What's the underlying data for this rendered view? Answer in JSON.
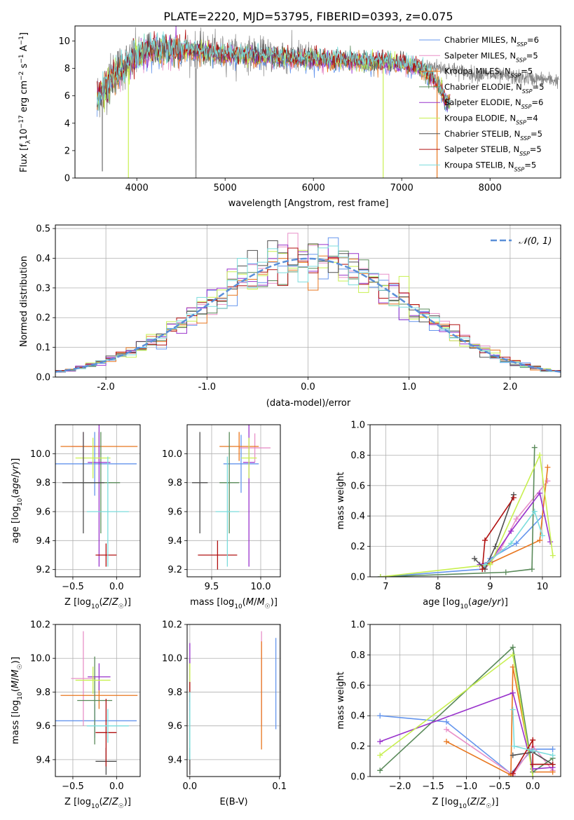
{
  "figure_title": "PLATE=2220, MJD=53795, FIBERID=0393, z=0.075",
  "colors": {
    "Chabrier MILES": "#6495ed",
    "Salpeter MILES": "#e890c8",
    "Kroupa MILES": "#e8761e",
    "Chabrier ELODIE": "#5a8a5a",
    "Salpeter ELODIE": "#9932cc",
    "Kroupa ELODIE": "#c8f050",
    "Chabrier STELIB": "#505050",
    "Salpeter STELIB": "#b01010",
    "Kroupa STELIB": "#7adcdc",
    "grid": "#b0b0b0",
    "gaussian": "#5b8fd8"
  },
  "chart_data": [
    {
      "type": "line",
      "title": "PLATE=2220, MJD=53795, FIBERID=0393, z=0.075",
      "xlabel": "wavelength [Angstrom, rest frame]",
      "ylabel": "Flux [fλ10⁻¹⁷ erg cm⁻² s⁻¹ A⁻¹]",
      "xlim": [
        3300,
        8800
      ],
      "ylim": [
        0,
        11.1
      ],
      "xticks": [
        4000,
        5000,
        6000,
        7000,
        8000
      ],
      "yticks": [
        0,
        2,
        4,
        6,
        8,
        10
      ],
      "grid": false,
      "legend_position": "top-right",
      "legend": [
        "Chabrier MILES, NSSP=6",
        "Salpeter MILES, NSSP=5",
        "Kroupa MILES, NSSP=5",
        "Chabrier ELODIE, NSSP=5",
        "Salpeter ELODIE, NSSP=6",
        "Kroupa ELODIE, NSSP=4",
        "Chabrier STELIB, NSSP=5",
        "Salpeter STELIB, NSSP=5",
        "Kroupa STELIB, NSSP=5"
      ],
      "data_continuum": {
        "x": [
          3550,
          3650,
          3750,
          3850,
          3950,
          4050,
          4200,
          4400,
          4600,
          4800,
          5000,
          5200,
          5400,
          5600,
          5800,
          6000,
          6200,
          6400,
          6600,
          6800,
          7000,
          7200,
          7400,
          7600,
          7800,
          8000,
          8200,
          8400,
          8600,
          8800
        ],
        "y": [
          6.0,
          6.8,
          7.8,
          8.2,
          8.6,
          9.2,
          9.4,
          9.5,
          9.4,
          9.3,
          9.1,
          9.1,
          9.0,
          8.9,
          8.8,
          8.8,
          8.6,
          8.6,
          8.5,
          8.5,
          8.3,
          8.2,
          8.1,
          7.9,
          7.6,
          7.5,
          7.4,
          7.3,
          7.2,
          7.1
        ]
      },
      "model_continuum": {
        "x": [
          3550,
          3650,
          3750,
          3850,
          3950,
          4050,
          4200,
          4400,
          4600,
          4800,
          5000,
          5200,
          5400,
          5600,
          5800,
          6000,
          6200,
          6400,
          6600,
          6800,
          7000,
          7200,
          7400,
          7500
        ],
        "y": [
          5.8,
          6.5,
          7.4,
          7.9,
          8.6,
          9.1,
          9.3,
          9.4,
          9.3,
          9.2,
          9.0,
          9.0,
          8.9,
          8.8,
          8.7,
          8.7,
          8.6,
          8.6,
          8.5,
          8.5,
          8.3,
          8.1,
          7.0,
          5.5
        ]
      }
    },
    {
      "type": "line",
      "xlabel": "(data-model)/error",
      "ylabel": "Normed distribution",
      "xlim": [
        -2.5,
        2.5
      ],
      "ylim": [
        0,
        0.512
      ],
      "xticks": [
        -2,
        -1,
        0,
        1,
        2
      ],
      "yticks": [
        0.0,
        0.1,
        0.2,
        0.3,
        0.4,
        0.5
      ],
      "grid": true,
      "legend_position": "top-right",
      "legend": [
        "𝒩(0, 1)"
      ],
      "bin_width": 0.1,
      "gaussian": {
        "mu": 0,
        "sigma": 1
      }
    },
    {
      "type": "scatter",
      "xlabel": "Z [log10(Z/Z☉)]",
      "ylabel": "age  [log10(age/yr)]",
      "xlim": [
        -0.7,
        0.27
      ],
      "ylim": [
        9.15,
        10.2
      ],
      "xticks": [
        -0.5,
        0.0
      ],
      "yticks": [
        9.2,
        9.4,
        9.6,
        9.8,
        10.0
      ],
      "grid": true,
      "series": [
        {
          "name": "Chabrier MILES",
          "x": -0.25,
          "y": 9.93,
          "xerr": 0.48,
          "yerr": 0.22
        },
        {
          "name": "Salpeter MILES",
          "x": -0.38,
          "y": 10.05,
          "xerr": 0.14,
          "yerr": 0.1
        },
        {
          "name": "Kroupa MILES",
          "x": -0.2,
          "y": 10.05,
          "xerr": 0.44,
          "yerr": 0.1
        },
        {
          "name": "Chabrier ELODIE",
          "x": -0.18,
          "y": 9.8,
          "xerr": 0.22,
          "yerr": 0.35
        },
        {
          "name": "Salpeter ELODIE",
          "x": -0.2,
          "y": 9.94,
          "xerr": 0.13,
          "yerr": 0.72
        },
        {
          "name": "Kroupa ELODIE",
          "x": -0.27,
          "y": 9.97,
          "xerr": 0.2,
          "yerr": 0.14
        },
        {
          "name": "Chabrier STELIB",
          "x": -0.38,
          "y": 9.8,
          "xerr": 0.24,
          "yerr": 0.35
        },
        {
          "name": "Salpeter STELIB",
          "x": -0.12,
          "y": 9.3,
          "xerr": 0.12,
          "yerr": 0.08
        },
        {
          "name": "Kroupa STELIB",
          "x": -0.1,
          "y": 9.6,
          "xerr": 0.24,
          "yerr": 0.38
        }
      ]
    },
    {
      "type": "scatter",
      "xlabel": "mass [log10(M/M☉)]",
      "ylabel": "",
      "xlim": [
        9.25,
        10.2
      ],
      "ylim": [
        9.15,
        10.2
      ],
      "xticks": [
        9.5,
        10.0
      ],
      "yticks": [
        9.2,
        9.4,
        9.6,
        9.8,
        10.0
      ],
      "grid": true,
      "series": [
        {
          "name": "Chabrier MILES",
          "x": 9.8,
          "y": 9.93,
          "xerr": 0.18,
          "yerr": 0.2
        },
        {
          "name": "Salpeter MILES",
          "x": 9.94,
          "y": 10.04,
          "xerr": 0.16,
          "yerr": 0.1
        },
        {
          "name": "Kroupa MILES",
          "x": 9.78,
          "y": 10.05,
          "xerr": 0.2,
          "yerr": 0.1
        },
        {
          "name": "Chabrier ELODIE",
          "x": 9.68,
          "y": 9.8,
          "xerr": 0.1,
          "yerr": 0.35
        },
        {
          "name": "Salpeter ELODIE",
          "x": 9.88,
          "y": 9.94,
          "xerr": 0.06,
          "yerr": 0.72
        },
        {
          "name": "Kroupa ELODIE",
          "x": 9.88,
          "y": 9.97,
          "xerr": 0.08,
          "yerr": 0.14
        },
        {
          "name": "Chabrier STELIB",
          "x": 9.38,
          "y": 9.8,
          "xerr": 0.08,
          "yerr": 0.35
        },
        {
          "name": "Salpeter STELIB",
          "x": 9.56,
          "y": 9.3,
          "xerr": 0.2,
          "yerr": 0.1
        },
        {
          "name": "Kroupa STELIB",
          "x": 9.66,
          "y": 9.6,
          "xerr": 0.12,
          "yerr": 0.38
        }
      ]
    },
    {
      "type": "line",
      "xlabel": "age  [log10(age/yr)]",
      "ylabel": "mass weight",
      "xlim": [
        6.7,
        10.35
      ],
      "ylim": [
        0,
        1.0
      ],
      "xticks": [
        7,
        8,
        9,
        10
      ],
      "yticks": [
        0.0,
        0.2,
        0.4,
        0.6,
        0.8,
        1.0
      ],
      "grid": true,
      "series": [
        {
          "name": "Chabrier MILES",
          "x": [
            6.9,
            8.85,
            9.0,
            9.5,
            10.0
          ],
          "y": [
            0.0,
            0.05,
            0.12,
            0.22,
            0.4
          ]
        },
        {
          "name": "Salpeter MILES",
          "x": [
            8.9,
            9.2,
            9.5,
            10.1
          ],
          "y": [
            0.05,
            0.18,
            0.38,
            0.63
          ]
        },
        {
          "name": "Kroupa MILES",
          "x": [
            8.85,
            9.0,
            9.95,
            10.1
          ],
          "y": [
            0.05,
            0.09,
            0.24,
            0.72
          ]
        },
        {
          "name": "Chabrier ELODIE",
          "x": [
            6.9,
            9.3,
            9.8,
            9.85
          ],
          "y": [
            0.0,
            0.03,
            0.05,
            0.85
          ]
        },
        {
          "name": "Salpeter ELODIE",
          "x": [
            8.8,
            9.0,
            9.4,
            9.95,
            10.15
          ],
          "y": [
            0.08,
            0.1,
            0.3,
            0.55,
            0.23
          ]
        },
        {
          "name": "Kroupa ELODIE",
          "x": [
            6.9,
            9.0,
            9.95,
            10.2
          ],
          "y": [
            0.0,
            0.08,
            0.8,
            0.14
          ]
        },
        {
          "name": "Chabrier STELIB",
          "x": [
            8.7,
            8.9,
            9.1,
            9.45
          ],
          "y": [
            0.12,
            0.05,
            0.2,
            0.54
          ]
        },
        {
          "name": "Salpeter STELIB",
          "x": [
            8.85,
            8.9,
            9.45
          ],
          "y": [
            0.05,
            0.24,
            0.52
          ]
        },
        {
          "name": "Kroupa STELIB",
          "x": [
            8.9,
            9.4,
            9.85,
            10.0
          ],
          "y": [
            0.08,
            0.22,
            0.43,
            0.27
          ]
        }
      ]
    },
    {
      "type": "scatter",
      "xlabel": "Z [log10(Z/Z☉)]",
      "ylabel": "mass [log10(M/M☉)]",
      "xlim": [
        -0.7,
        0.27
      ],
      "ylim": [
        9.3,
        10.2
      ],
      "xticks": [
        -0.5,
        0.0
      ],
      "yticks": [
        9.4,
        9.6,
        9.8,
        10.0,
        10.2
      ],
      "grid": true,
      "series": [
        {
          "name": "Chabrier MILES",
          "x": -0.25,
          "y": 9.63,
          "xerr": 0.48,
          "yerr": 0.1
        },
        {
          "name": "Salpeter MILES",
          "x": -0.38,
          "y": 9.88,
          "xerr": 0.14,
          "yerr": 0.28
        },
        {
          "name": "Kroupa MILES",
          "x": -0.2,
          "y": 9.78,
          "xerr": 0.44,
          "yerr": 0.08
        },
        {
          "name": "Chabrier ELODIE",
          "x": -0.25,
          "y": 9.75,
          "xerr": 0.2,
          "yerr": 0.26
        },
        {
          "name": "Salpeter ELODIE",
          "x": -0.2,
          "y": 9.89,
          "xerr": 0.13,
          "yerr": 0.08
        },
        {
          "name": "Kroupa ELODIE",
          "x": -0.27,
          "y": 9.87,
          "xerr": 0.2,
          "yerr": 0.08
        },
        {
          "name": "Chabrier STELIB",
          "x": -0.12,
          "y": 9.39,
          "xerr": 0.12,
          "yerr": 0.08
        },
        {
          "name": "Salpeter STELIB",
          "x": -0.12,
          "y": 9.56,
          "xerr": 0.12,
          "yerr": 0.2
        },
        {
          "name": "Kroupa STELIB",
          "x": -0.1,
          "y": 9.6,
          "xerr": 0.24,
          "yerr": 0.1
        }
      ]
    },
    {
      "type": "scatter",
      "xlabel": "E(B-V)",
      "ylabel": "",
      "xlim": [
        -0.003,
        0.101
      ],
      "ylim": [
        9.3,
        10.2
      ],
      "xticks": [
        0.0,
        0.1
      ],
      "yticks": [
        9.4,
        9.6,
        9.8,
        10.0,
        10.2
      ],
      "grid": true,
      "series": [
        {
          "name": "Chabrier MILES",
          "x": 0.096,
          "y": 9.85,
          "xerr": 0,
          "yerr": 0.27
        },
        {
          "name": "Salpeter MILES",
          "x": 0.08,
          "y": 9.88,
          "xerr": 0,
          "yerr": 0.28
        },
        {
          "name": "Kroupa MILES",
          "x": 0.08,
          "y": 9.78,
          "xerr": 0,
          "yerr": 0.32
        },
        {
          "name": "Chabrier ELODIE",
          "x": 0.0,
          "y": 9.7,
          "xerr": 0,
          "yerr": 0.3
        },
        {
          "name": "Salpeter ELODIE",
          "x": 0.0,
          "y": 9.89,
          "xerr": 0,
          "yerr": 0.2
        },
        {
          "name": "Kroupa ELODIE",
          "x": 0.0,
          "y": 9.87,
          "xerr": 0,
          "yerr": 0.1
        },
        {
          "name": "Chabrier STELIB",
          "x": 0.0,
          "y": 9.39,
          "xerr": 0,
          "yerr": 0.08
        },
        {
          "name": "Salpeter STELIB",
          "x": 0.0,
          "y": 9.8,
          "xerr": 0,
          "yerr": 0.06
        },
        {
          "name": "Kroupa STELIB",
          "x": 0.0,
          "y": 9.6,
          "xerr": 0,
          "yerr": 0.2
        }
      ]
    },
    {
      "type": "line",
      "xlabel": "Z [log10(Z/Z☉)]",
      "ylabel": "mass weight",
      "xlim": [
        -2.45,
        0.42
      ],
      "ylim": [
        0,
        1.0
      ],
      "xticks": [
        -2.0,
        -1.5,
        -1.0,
        -0.5,
        0.0
      ],
      "yticks": [
        0.0,
        0.2,
        0.4,
        0.6,
        0.8,
        1.0
      ],
      "grid": true,
      "series": [
        {
          "name": "Chabrier MILES",
          "x": [
            -2.3,
            -1.3,
            -0.33,
            0.0,
            0.3
          ],
          "y": [
            0.4,
            0.36,
            0.02,
            0.18,
            0.18
          ]
        },
        {
          "name": "Salpeter MILES",
          "x": [
            -1.3,
            -0.3,
            0.0,
            0.3
          ],
          "y": [
            0.31,
            0.01,
            0.2,
            0.04
          ]
        },
        {
          "name": "Kroupa MILES",
          "x": [
            -1.3,
            -0.33,
            -0.3,
            0.0,
            0.3
          ],
          "y": [
            0.23,
            0.01,
            0.72,
            0.03,
            0.03
          ]
        },
        {
          "name": "Chabrier ELODIE",
          "x": [
            -2.3,
            -0.3,
            0.0,
            0.3
          ],
          "y": [
            0.04,
            0.85,
            0.03,
            0.12
          ]
        },
        {
          "name": "Salpeter ELODIE",
          "x": [
            -2.3,
            -0.3,
            0.0,
            0.3
          ],
          "y": [
            0.23,
            0.55,
            0.05,
            0.06
          ]
        },
        {
          "name": "Kroupa ELODIE",
          "x": [
            -2.3,
            -0.3,
            0.0
          ],
          "y": [
            0.14,
            0.8,
            0.0
          ]
        },
        {
          "name": "Chabrier STELIB",
          "x": [
            -0.3,
            0.0,
            0.3
          ],
          "y": [
            0.14,
            0.16,
            0.08
          ]
        },
        {
          "name": "Salpeter STELIB",
          "x": [
            -0.3,
            0.0,
            0.0,
            0.3
          ],
          "y": [
            0.02,
            0.24,
            0.08,
            0.08
          ]
        },
        {
          "name": "Kroupa STELIB",
          "x": [
            -0.3,
            -0.28,
            0.0,
            0.3
          ],
          "y": [
            0.44,
            0.2,
            0.17,
            0.14
          ]
        }
      ]
    }
  ]
}
